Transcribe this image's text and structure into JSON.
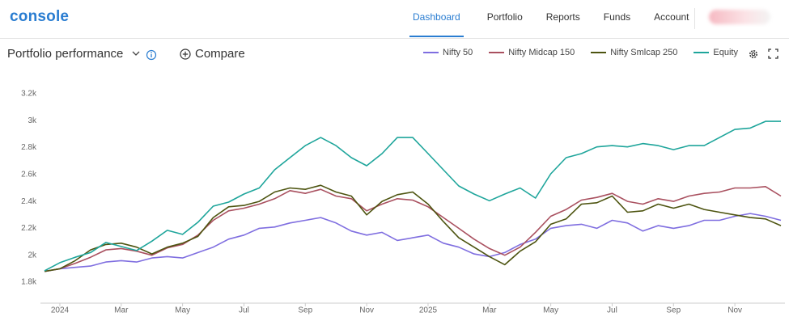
{
  "header": {
    "logo": "console",
    "nav": [
      "Dashboard",
      "Portfolio",
      "Reports",
      "Funds",
      "Account"
    ]
  },
  "toolbar": {
    "compare": "Compare"
  },
  "chart_data": {
    "type": "line",
    "title": "Portfolio performance",
    "categories": [
      null,
      "2024",
      null,
      null,
      null,
      "Mar",
      null,
      null,
      null,
      "May",
      null,
      null,
      null,
      "Jul",
      null,
      null,
      null,
      "Sep",
      null,
      null,
      null,
      "Nov",
      null,
      null,
      null,
      "2025",
      null,
      null,
      null,
      "Mar",
      null,
      null,
      null,
      "May",
      null,
      null,
      null,
      "Jul",
      null,
      null,
      null,
      "Sep",
      null,
      null,
      null,
      "Nov",
      null,
      null,
      null
    ],
    "series": [
      {
        "name": "Nifty 50",
        "color": "#7f6ee0",
        "values": [
          1880,
          1900,
          1910,
          1920,
          1950,
          1960,
          1950,
          1980,
          1990,
          1980,
          2020,
          2060,
          2120,
          2150,
          2200,
          2210,
          2240,
          2260,
          2280,
          2240,
          2180,
          2150,
          2170,
          2110,
          2130,
          2150,
          2090,
          2060,
          2010,
          1990,
          2020,
          2080,
          2120,
          2200,
          2220,
          2230,
          2200,
          2260,
          2240,
          2180,
          2220,
          2200,
          2220,
          2260,
          2260,
          2290,
          2310,
          2290,
          2260
        ]
      },
      {
        "name": "Nifty Midcap 150",
        "color": "#a9505f",
        "values": [
          1880,
          1900,
          1940,
          1985,
          2040,
          2050,
          2030,
          2000,
          2055,
          2080,
          2150,
          2260,
          2330,
          2350,
          2380,
          2420,
          2480,
          2460,
          2490,
          2440,
          2420,
          2330,
          2380,
          2420,
          2410,
          2360,
          2280,
          2200,
          2120,
          2050,
          2000,
          2060,
          2170,
          2290,
          2340,
          2410,
          2430,
          2460,
          2400,
          2380,
          2420,
          2400,
          2440,
          2460,
          2470,
          2500,
          2500,
          2510,
          2440
        ]
      },
      {
        "name": "Nifty Smlcap 250",
        "color": "#4d5410",
        "values": [
          1880,
          1900,
          1960,
          2040,
          2080,
          2090,
          2060,
          2010,
          2060,
          2090,
          2140,
          2280,
          2360,
          2370,
          2400,
          2470,
          2500,
          2490,
          2520,
          2470,
          2440,
          2300,
          2400,
          2450,
          2470,
          2380,
          2250,
          2130,
          2060,
          1990,
          1930,
          2030,
          2100,
          2230,
          2270,
          2380,
          2390,
          2440,
          2320,
          2330,
          2380,
          2350,
          2380,
          2340,
          2320,
          2300,
          2280,
          2270,
          2220
        ]
      },
      {
        "name": "Equity",
        "color": "#1ea59b",
        "values": [
          1885,
          1945,
          1985,
          2020,
          2095,
          2065,
          2035,
          2105,
          2185,
          2155,
          2245,
          2365,
          2395,
          2455,
          2500,
          2635,
          2725,
          2815,
          2875,
          2815,
          2725,
          2665,
          2755,
          2875,
          2875,
          2755,
          2635,
          2515,
          2455,
          2405,
          2455,
          2500,
          2425,
          2605,
          2725,
          2755,
          2805,
          2815,
          2805,
          2830,
          2815,
          2785,
          2815,
          2815,
          2875,
          2935,
          2945,
          2995,
          2995
        ]
      }
    ],
    "ylim": [
      1650,
      3350
    ],
    "yticks": [
      {
        "value": 1800,
        "label": "1.8k"
      },
      {
        "value": 2000,
        "label": "2k"
      },
      {
        "value": 2200,
        "label": "2.2k"
      },
      {
        "value": 2400,
        "label": "2.4k"
      },
      {
        "value": 2600,
        "label": "2.6k"
      },
      {
        "value": 2800,
        "label": "2.8k"
      },
      {
        "value": 3000,
        "label": "3k"
      },
      {
        "value": 3200,
        "label": "3.2k"
      }
    ],
    "grid": false
  }
}
